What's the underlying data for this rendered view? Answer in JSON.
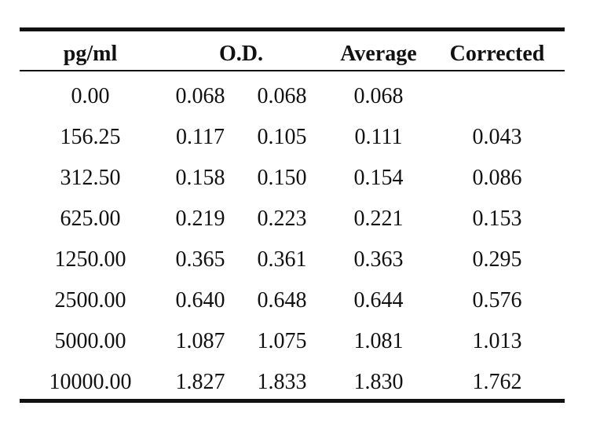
{
  "table": {
    "headers": {
      "pg": "pg/ml",
      "od": "O.D.",
      "average": "Average",
      "corrected": "Corrected"
    },
    "rows": [
      {
        "pg": "0.00",
        "od1": "0.068",
        "od2": "0.068",
        "average": "0.068",
        "corrected": ""
      },
      {
        "pg": "156.25",
        "od1": "0.117",
        "od2": "0.105",
        "average": "0.111",
        "corrected": "0.043"
      },
      {
        "pg": "312.50",
        "od1": "0.158",
        "od2": "0.150",
        "average": "0.154",
        "corrected": "0.086"
      },
      {
        "pg": "625.00",
        "od1": "0.219",
        "od2": "0.223",
        "average": "0.221",
        "corrected": "0.153"
      },
      {
        "pg": "1250.00",
        "od1": "0.365",
        "od2": "0.361",
        "average": "0.363",
        "corrected": "0.295"
      },
      {
        "pg": "2500.00",
        "od1": "0.640",
        "od2": "0.648",
        "average": "0.644",
        "corrected": "0.576"
      },
      {
        "pg": "5000.00",
        "od1": "1.087",
        "od2": "1.075",
        "average": "1.081",
        "corrected": "1.013"
      },
      {
        "pg": "10000.00",
        "od1": "1.827",
        "od2": "1.833",
        "average": "1.830",
        "corrected": "1.762"
      }
    ]
  }
}
